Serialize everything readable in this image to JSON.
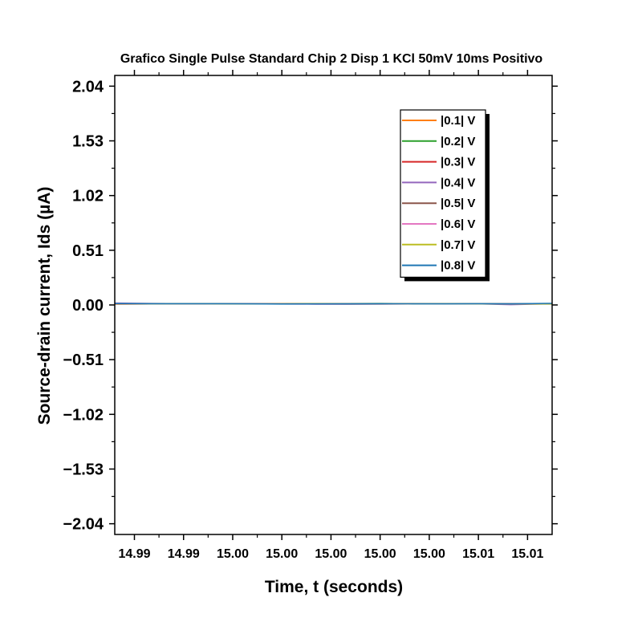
{
  "chart_data": {
    "type": "line",
    "title": "Grafico Single Pulse Standard Chip 2 Disp 1 KCl 50mV 10ms Positivo",
    "xlabel": "Time, t (seconds)",
    "ylabel": "Source-drain current, Ids (µA)",
    "xlim": [
      14.9848,
      15.0115
    ],
    "ylim": [
      -2.14,
      2.14
    ],
    "xticks": [
      14.986,
      14.989,
      14.992,
      14.995,
      14.998,
      15.001,
      15.004,
      15.007,
      15.01
    ],
    "xtick_labels": [
      "14.99",
      "14.99",
      "15.00",
      "15.00",
      "15.00",
      "15.00",
      "15.00",
      "15.01",
      "15.01"
    ],
    "yticks": [
      2.04,
      1.53,
      1.02,
      0.51,
      0.0,
      -0.51,
      -1.02,
      -1.53,
      -2.04
    ],
    "ytick_labels": [
      "2.04",
      "1.53",
      "1.02",
      "0.51",
      "0.00",
      "−0.51",
      "−1.02",
      "−1.53",
      "−2.04"
    ],
    "grid": false,
    "legend_position": "top-right",
    "x": [
      14.9848,
      14.987,
      14.989,
      14.991,
      14.993,
      14.995,
      14.997,
      14.999,
      15.001,
      15.003,
      15.005,
      15.007,
      15.009,
      15.0115
    ],
    "series": [
      {
        "name": "|0.1| V",
        "color": "#ff7f0e",
        "values": [
          0.01,
          0.011,
          0.01,
          0.011,
          0.01,
          0.011,
          0.012,
          0.011,
          0.01,
          0.011,
          0.012,
          0.011,
          0.01,
          0.011
        ]
      },
      {
        "name": "|0.2| V",
        "color": "#2ca02c",
        "values": [
          0.012,
          0.012,
          0.011,
          0.012,
          0.011,
          0.01,
          0.012,
          0.013,
          0.014,
          0.012,
          0.011,
          0.013,
          0.01,
          0.009
        ]
      },
      {
        "name": "|0.3| V",
        "color": "#d62728",
        "values": [
          0.011,
          0.01,
          0.011,
          0.01,
          0.011,
          0.012,
          0.011,
          0.012,
          0.011,
          0.01,
          0.011,
          0.012,
          0.011,
          0.012
        ]
      },
      {
        "name": "|0.4| V",
        "color": "#9467bd",
        "values": [
          0.017,
          0.014,
          0.012,
          0.011,
          0.012,
          0.01,
          0.008,
          0.007,
          0.008,
          0.01,
          0.012,
          0.011,
          0.003,
          0.012
        ]
      },
      {
        "name": "|0.5| V",
        "color": "#8c564b",
        "values": [
          0.009,
          0.01,
          0.01,
          0.011,
          0.01,
          0.011,
          0.01,
          0.012,
          0.011,
          0.012,
          0.011,
          0.012,
          0.011,
          0.012
        ]
      },
      {
        "name": "|0.6| V",
        "color": "#e377c2",
        "values": [
          0.006,
          0.01,
          0.011,
          0.01,
          0.011,
          0.01,
          0.009,
          0.01,
          0.011,
          0.01,
          0.011,
          0.01,
          0.011,
          0.01
        ]
      },
      {
        "name": "|0.7| V",
        "color": "#bcbd22",
        "values": [
          0.01,
          0.011,
          0.012,
          0.011,
          0.01,
          0.011,
          0.012,
          0.011,
          0.012,
          0.011,
          0.012,
          0.011,
          0.01,
          0.011
        ]
      },
      {
        "name": "|0.8| V",
        "color": "#1f77b4",
        "values": [
          0.013,
          0.012,
          0.012,
          0.012,
          0.011,
          0.009,
          0.01,
          0.011,
          0.012,
          0.011,
          0.011,
          0.012,
          0.011,
          0.015
        ]
      }
    ]
  }
}
